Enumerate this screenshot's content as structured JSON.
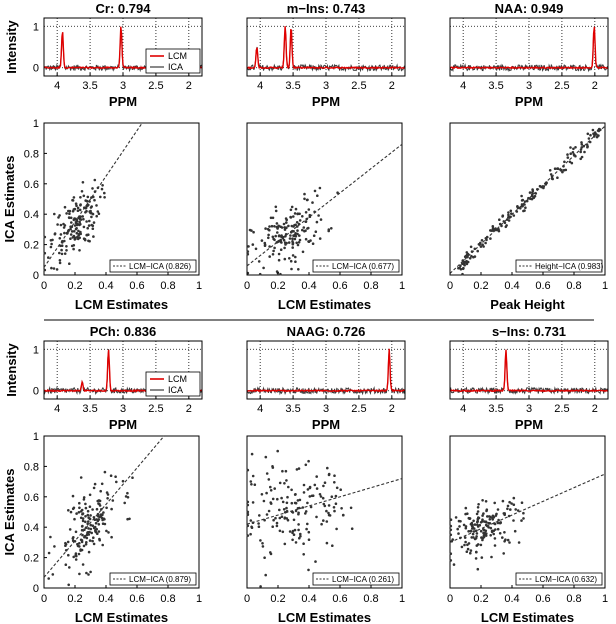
{
  "chart_data": [
    {
      "id": "spec_cr",
      "type": "line",
      "title": "Cr: 0.794",
      "xlabel": "PPM",
      "ylabel": "Intensity",
      "xlim": [
        4.2,
        1.8
      ],
      "ylim": [
        -0.2,
        1.2
      ],
      "xticks": [
        "4",
        "3.5",
        "3",
        "2.5",
        "2"
      ],
      "yticks": [
        "0",
        "1"
      ],
      "legend": [
        "LCM",
        "ICA"
      ],
      "peaks": [
        {
          "ppm": 3.92,
          "amp": 0.9
        },
        {
          "ppm": 3.03,
          "amp": 1.0
        }
      ]
    },
    {
      "id": "spec_mins",
      "type": "line",
      "title": "m−Ins: 0.743",
      "xlabel": "PPM",
      "ylabel": "",
      "xlim": [
        4.2,
        1.8
      ],
      "ylim": [
        -0.2,
        1.2
      ],
      "xticks": [
        "4",
        "3.5",
        "3",
        "2.5",
        "2"
      ],
      "yticks": [],
      "legend": [],
      "peaks": [
        {
          "ppm": 4.05,
          "amp": 0.5
        },
        {
          "ppm": 3.62,
          "amp": 1.0
        },
        {
          "ppm": 3.53,
          "amp": 1.0
        }
      ]
    },
    {
      "id": "spec_naa",
      "type": "line",
      "title": "NAA: 0.949",
      "xlabel": "PPM",
      "ylabel": "",
      "xlim": [
        4.2,
        1.8
      ],
      "ylim": [
        -0.2,
        1.2
      ],
      "xticks": [
        "4",
        "3.5",
        "3",
        "2.5",
        "2"
      ],
      "yticks": [],
      "legend": [],
      "peaks": [
        {
          "ppm": 2.01,
          "amp": 1.0
        }
      ]
    },
    {
      "id": "scat_cr",
      "type": "scatter",
      "xlabel": "LCM Estimates",
      "ylabel": "ICA Estimates",
      "xlim": [
        0,
        1
      ],
      "ylim": [
        0,
        1
      ],
      "xticks": [
        "0",
        "0.2",
        "0.4",
        "0.6",
        "0.8",
        "1"
      ],
      "yticks": [
        "0",
        "0.2",
        "0.4",
        "0.6",
        "0.8",
        "1"
      ],
      "fit": {
        "slope": 1.5,
        "intercept": 0.05
      },
      "cluster": {
        "x": 0.2,
        "y": 0.33,
        "sx": 0.08,
        "sy": 0.1
      },
      "legend": "LCM−ICA (0.826)"
    },
    {
      "id": "scat_mins",
      "type": "scatter",
      "xlabel": "LCM Estimates",
      "ylabel": "",
      "xlim": [
        0,
        1
      ],
      "ylim": [
        0,
        1
      ],
      "xticks": [
        "0",
        "0.2",
        "0.4",
        "0.6",
        "0.8",
        "1"
      ],
      "yticks": [],
      "fit": {
        "slope": 0.8,
        "intercept": 0.06
      },
      "cluster": {
        "x": 0.27,
        "y": 0.27,
        "sx": 0.12,
        "sy": 0.1
      },
      "legend": "LCM−ICA (0.677)"
    },
    {
      "id": "scat_naa",
      "type": "scatter",
      "xlabel": "Peak Height",
      "ylabel": "",
      "xlim": [
        0,
        1
      ],
      "ylim": [
        0,
        1
      ],
      "xticks": [
        "0",
        "0.2",
        "0.4",
        "0.6",
        "0.8",
        "1"
      ],
      "yticks": [],
      "fit": {
        "slope": 0.97,
        "intercept": 0.01
      },
      "cluster": {
        "x": 0.5,
        "y": 0.5,
        "sx": 0.22,
        "sy": 0.03
      },
      "legend": "Height−ICA (0.983)"
    },
    {
      "id": "spec_pch",
      "type": "line",
      "title": "PCh: 0.836",
      "xlabel": "PPM",
      "ylabel": "Intensity",
      "xlim": [
        4.2,
        1.8
      ],
      "ylim": [
        -0.2,
        1.2
      ],
      "xticks": [
        "4",
        "3.5",
        "3",
        "2.5",
        "2"
      ],
      "yticks": [
        "0",
        "1"
      ],
      "legend": [
        "LCM",
        "ICA"
      ],
      "peaks": [
        {
          "ppm": 3.22,
          "amp": 1.0
        },
        {
          "ppm": 3.62,
          "amp": 0.2
        }
      ]
    },
    {
      "id": "spec_naag",
      "type": "line",
      "title": "NAAG: 0.726",
      "xlabel": "PPM",
      "ylabel": "",
      "xlim": [
        4.2,
        1.8
      ],
      "ylim": [
        -0.2,
        1.2
      ],
      "xticks": [
        "4",
        "3.5",
        "3",
        "2.5",
        "2"
      ],
      "yticks": [],
      "legend": [],
      "peaks": [
        {
          "ppm": 2.04,
          "amp": 1.0
        }
      ]
    },
    {
      "id": "spec_sins",
      "type": "line",
      "title": "s−Ins: 0.731",
      "xlabel": "PPM",
      "ylabel": "",
      "xlim": [
        4.2,
        1.8
      ],
      "ylim": [
        -0.2,
        1.2
      ],
      "xticks": [
        "4",
        "3.5",
        "3",
        "2.5",
        "2"
      ],
      "yticks": [],
      "legend": [],
      "peaks": [
        {
          "ppm": 3.35,
          "amp": 1.0
        }
      ]
    },
    {
      "id": "scat_pch",
      "type": "scatter",
      "xlabel": "LCM Estimates",
      "ylabel": "ICA Estimates",
      "xlim": [
        0,
        1
      ],
      "ylim": [
        0,
        1
      ],
      "xticks": [
        "0",
        "0.2",
        "0.4",
        "0.6",
        "0.8",
        "1"
      ],
      "yticks": [
        "0",
        "0.2",
        "0.4",
        "0.6",
        "0.8",
        "1"
      ],
      "fit": {
        "slope": 1.2,
        "intercept": 0.07
      },
      "cluster": {
        "x": 0.28,
        "y": 0.4,
        "sx": 0.1,
        "sy": 0.12
      },
      "legend": "LCM−ICA (0.879)"
    },
    {
      "id": "scat_naag",
      "type": "scatter",
      "xlabel": "LCM Estimates",
      "ylabel": "",
      "xlim": [
        0,
        1
      ],
      "ylim": [
        0,
        1
      ],
      "xticks": [
        "0",
        "0.2",
        "0.4",
        "0.6",
        "0.8",
        "1"
      ],
      "yticks": [],
      "fit": {
        "slope": 0.3,
        "intercept": 0.42
      },
      "cluster": {
        "x": 0.3,
        "y": 0.5,
        "sx": 0.18,
        "sy": 0.15
      },
      "legend": "LCM−ICA (0.261)"
    },
    {
      "id": "scat_sins",
      "type": "scatter",
      "xlabel": "LCM Estimates",
      "ylabel": "",
      "xlim": [
        0,
        1
      ],
      "ylim": [
        0,
        1
      ],
      "xticks": [
        "0",
        "0.2",
        "0.4",
        "0.6",
        "0.8",
        "1"
      ],
      "yticks": [],
      "fit": {
        "slope": 0.45,
        "intercept": 0.3
      },
      "cluster": {
        "x": 0.22,
        "y": 0.4,
        "sx": 0.12,
        "sy": 0.08
      },
      "legend": "LCM−ICA (0.632)"
    }
  ],
  "colors": {
    "lcm": "#e00000",
    "ica": "#3a3a3a",
    "dots": "#333333",
    "grid": "#000000"
  }
}
